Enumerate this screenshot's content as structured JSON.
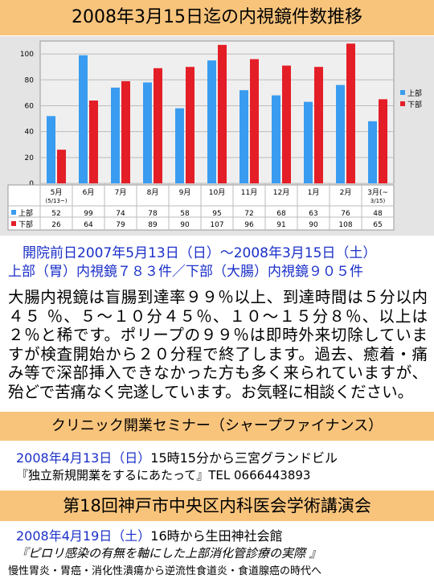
{
  "title": "2008年3月15日迄の内視鏡件数推移",
  "chart_data": {
    "type": "bar",
    "categories": [
      "5月\n(5/13~)",
      "6月",
      "7月",
      "8月",
      "9月",
      "10月",
      "11月",
      "12月",
      "1月",
      "2月",
      "3月(~\n3/15)"
    ],
    "series": [
      {
        "name": "上部",
        "color": "#3a9cf0",
        "values": [
          52,
          99,
          74,
          78,
          58,
          95,
          72,
          68,
          63,
          76,
          48
        ]
      },
      {
        "name": "下部",
        "color": "#e41e26",
        "values": [
          26,
          64,
          79,
          89,
          90,
          107,
          96,
          91,
          90,
          108,
          65
        ]
      }
    ],
    "ylim": [
      0,
      110
    ],
    "yticks": [
      0,
      20,
      40,
      60,
      80,
      100
    ],
    "grid": true,
    "legend": "right"
  },
  "summary": {
    "period": "開院前日2007年5月13日（日）～2008年3月15日（土）",
    "counts": "上部（胃）内視鏡７８３件／下部（大腸）内視鏡９０５件"
  },
  "paragraph": "大腸内視鏡は盲腸到達率９９％以上、到達時間は５分以内４５ ％、５～１０分４５％、１０～１５分８％、以上は２％と稀です。ポリープの９９％は即時外来切除していますが検査開始から２０分程で終了します。過去、癒着・痛み等で深部挿入できなかった方も多く来られていますが、殆どで苦痛なく完遂しています。お気軽に相談ください。",
  "seminar": {
    "title": "クリニック開業セミナー（シャープファイナンス）",
    "date": "2008年4月13日（日）",
    "place": "15時15分から三宮グランドビル",
    "topic": "『独立新規開業をするにあたって』TEL 0666443893"
  },
  "lecture": {
    "title": "第18回神戸市中央区内科医会学術講演会",
    "date": "2008年4月19日（土）",
    "place": "16時から生田神社会館",
    "topic": "『ピロリ感染の有無を軸にした上部消化管診療の実際 』",
    "sub": "慢性胃炎・胃癌・消化性潰瘍から逆流性食道炎・食道腺癌の時代へ"
  }
}
